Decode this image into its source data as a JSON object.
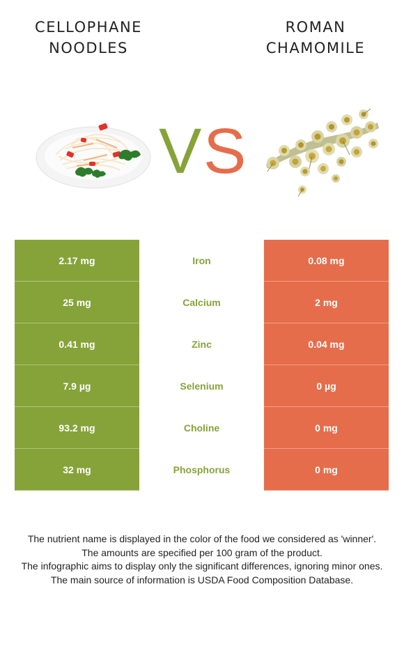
{
  "header": {
    "left_title": "CELLOPHANE\nNOODLES",
    "right_title": "ROMAN\nCHAMOMILE",
    "vs_v": "V",
    "vs_s": "S"
  },
  "colors": {
    "left_winner": "#86a33a",
    "right_winner": "#e56d4b",
    "background": "#ffffff"
  },
  "images": {
    "left": "cellophane-noodles-salad-plate",
    "right": "dried-chamomile-flowers"
  },
  "rows": [
    {
      "left": "2.17 mg",
      "nutrient": "Iron",
      "right": "0.08 mg",
      "winner": "left"
    },
    {
      "left": "25 mg",
      "nutrient": "Calcium",
      "right": "2 mg",
      "winner": "left"
    },
    {
      "left": "0.41 mg",
      "nutrient": "Zinc",
      "right": "0.04 mg",
      "winner": "left"
    },
    {
      "left": "7.9 µg",
      "nutrient": "Selenium",
      "right": "0 µg",
      "winner": "left"
    },
    {
      "left": "93.2 mg",
      "nutrient": "Choline",
      "right": "0 mg",
      "winner": "left"
    },
    {
      "left": "32 mg",
      "nutrient": "Phosphorus",
      "right": "0 mg",
      "winner": "left"
    }
  ],
  "footnote": [
    "The nutrient name is displayed in the color of the food we considered as 'winner'.",
    "The amounts are specified per 100 gram of the product.",
    "The infographic aims to display only the significant differences, ignoring minor ones.",
    "The main source of information is USDA Food Composition Database."
  ]
}
